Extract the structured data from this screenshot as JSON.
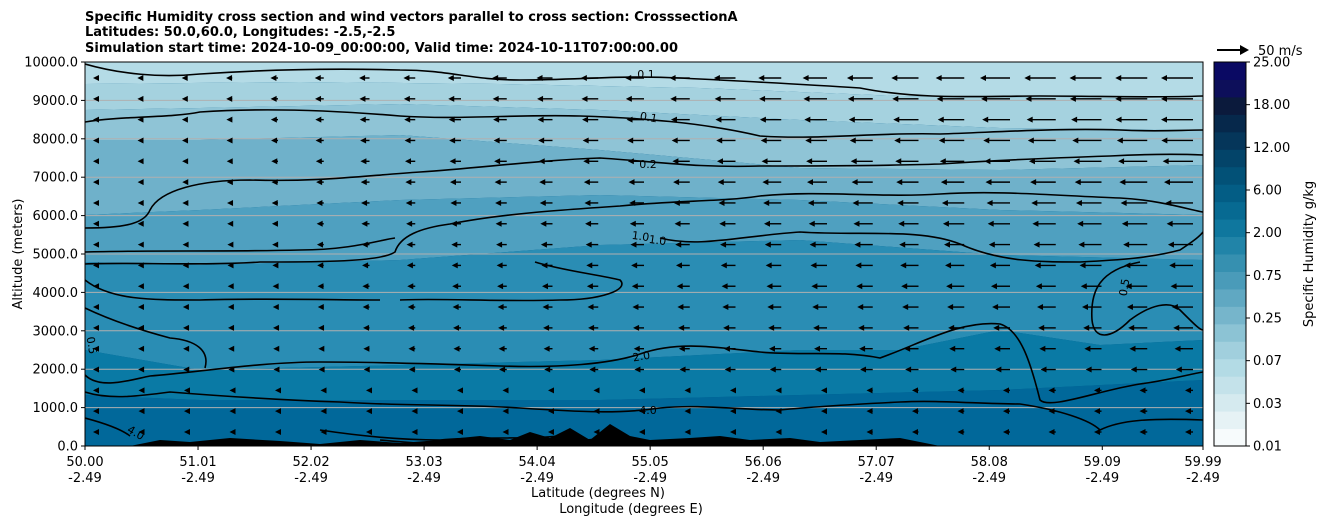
{
  "chart_data": {
    "type": "cross-section contour with wind vectors",
    "title_lines": [
      "Specific Humidity cross section and wind vectors parallel to cross section: CrosssectionA",
      "Latitudes: 50.0,60.0, Longitudes: -2.5,-2.5",
      "Simulation start time: 2024-10-09_00:00:00, Valid time: 2024-10-11T07:00:00.00"
    ],
    "xlabel_lat": "Latitude (degrees N)",
    "xlabel_lon": "Longitude (degrees E)",
    "ylabel": "Altitude (meters)",
    "x_ticks": [
      {
        "lat": "50.00",
        "lon": "-2.49"
      },
      {
        "lat": "51.01",
        "lon": "-2.49"
      },
      {
        "lat": "52.02",
        "lon": "-2.49"
      },
      {
        "lat": "53.03",
        "lon": "-2.49"
      },
      {
        "lat": "54.04",
        "lon": "-2.49"
      },
      {
        "lat": "55.05",
        "lon": "-2.49"
      },
      {
        "lat": "56.06",
        "lon": "-2.49"
      },
      {
        "lat": "57.07",
        "lon": "-2.49"
      },
      {
        "lat": "58.08",
        "lon": "-2.49"
      },
      {
        "lat": "59.09",
        "lon": "-2.49"
      },
      {
        "lat": "59.99",
        "lon": "-2.49"
      }
    ],
    "xlim": [
      50.0,
      59.99
    ],
    "y_ticks": [
      "0.0",
      "1000.0",
      "2000.0",
      "3000.0",
      "4000.0",
      "5000.0",
      "6000.0",
      "7000.0",
      "8000.0",
      "9000.0",
      "10000.0"
    ],
    "ylim": [
      0,
      10000
    ],
    "colorbar": {
      "label": "Specific Humidity g/kg",
      "tick_labels": [
        "0.01",
        "0.03",
        "0.07",
        "0.25",
        "0.75",
        "2.00",
        "6.00",
        "12.00",
        "18.00",
        "25.00"
      ],
      "colors": [
        "#f7fbfc",
        "#e6f2f5",
        "#d5eaef",
        "#c4e2ea",
        "#b3dbe5",
        "#a1cfdd",
        "#8cc3d4",
        "#76b5cb",
        "#60a8c2",
        "#4a9bb9",
        "#3690b0",
        "#2184a8",
        "#0f779e",
        "#076a92",
        "#035d85",
        "#025177",
        "#034469",
        "#05365a",
        "#06284b",
        "#0b1a3c",
        "#0d0f5a",
        "#0a0963"
      ]
    },
    "quiver_key": "50 m/s",
    "contours": [
      {
        "level": "0.1",
        "label": "0.1"
      },
      {
        "level": "0.1",
        "label": "0.1"
      },
      {
        "level": "0.2",
        "label": "0.2"
      },
      {
        "level": "1.0",
        "label": "1.0"
      },
      {
        "level": "1.0",
        "label": "1.0"
      },
      {
        "level": "0.5",
        "label": "0.5"
      },
      {
        "level": "0.5",
        "label": "0.5"
      },
      {
        "level": "2.0",
        "label": "2.0"
      },
      {
        "level": "4.0",
        "label": "4.0"
      },
      {
        "level": "4.0",
        "label": "4.0"
      }
    ],
    "grid": "horizontal"
  }
}
